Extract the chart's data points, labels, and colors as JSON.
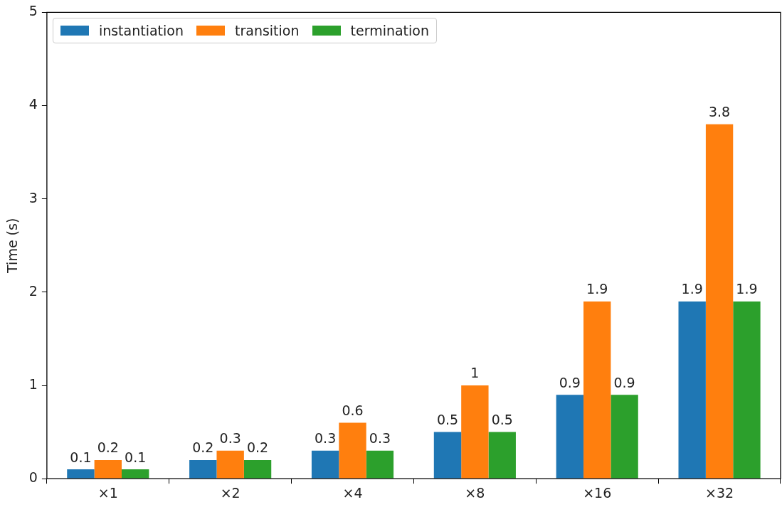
{
  "chart_data": {
    "type": "bar",
    "ylabel": "Time (s)",
    "categories": [
      "×1",
      "×2",
      "×4",
      "×8",
      "×16",
      "×32"
    ],
    "series": [
      {
        "name": "instantiation",
        "color": "#1f77b4",
        "values": [
          0.1,
          0.2,
          0.3,
          0.5,
          0.9,
          1.9
        ]
      },
      {
        "name": "transition",
        "color": "#ff7f0e",
        "values": [
          0.2,
          0.3,
          0.6,
          1,
          1.9,
          3.8
        ]
      },
      {
        "name": "termination",
        "color": "#2ca02c",
        "values": [
          0.1,
          0.2,
          0.3,
          0.5,
          0.9,
          1.9
        ]
      }
    ],
    "ylim": [
      0,
      5
    ],
    "yticks": [
      0,
      1,
      2,
      3,
      4,
      5
    ],
    "grid": false,
    "legend": "top left",
    "data_labels": true
  }
}
